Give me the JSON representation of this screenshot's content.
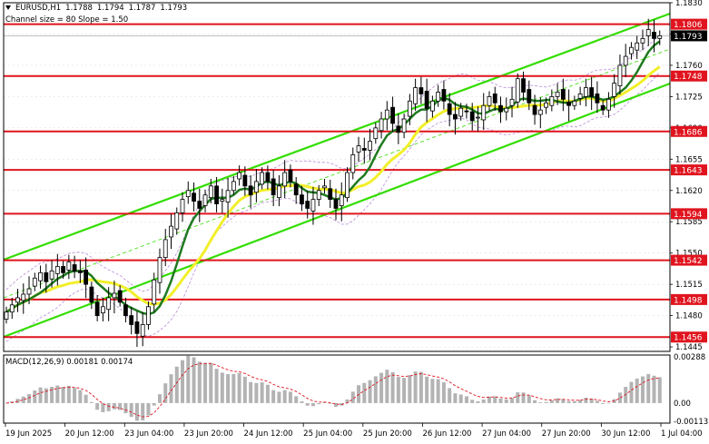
{
  "header": {
    "symbol": "EURUSD,H1",
    "ohlc": [
      "1.1788",
      "1.1794",
      "1.1787",
      "1.1793"
    ],
    "channel_label": "Channel size = 80 Slope = 1.50"
  },
  "macd_label": "MACD(12,26,9) 0.00181 0.00174",
  "colors": {
    "level_line": "#e0141e",
    "level_tag": "#e0141e",
    "channel": "#33dd00",
    "ma_fast": "#1f7a1f",
    "ma_slow": "#f2ef2a",
    "envelope": "#b88ad8",
    "candle": "#000000",
    "macd_hist": "#b3b3b3",
    "macd_signal": "#e0141e",
    "grid": "#d8d8d8"
  },
  "chart_data": {
    "type": "candlestick",
    "price_axis": {
      "min": 1.144,
      "max": 1.183,
      "ticks": [
        "1.1830",
        "1.1795",
        "1.1760",
        "1.1725",
        "1.1690",
        "1.1655",
        "1.1620",
        "1.1585",
        "1.1550",
        "1.1515",
        "1.1480",
        "1.1445"
      ]
    },
    "time_labels": [
      "19 Jun 2025",
      "20 Jun 12:00",
      "23 Jun 04:00",
      "23 Jun 20:00",
      "24 Jun 12:00",
      "25 Jun 04:00",
      "25 Jun 20:00",
      "26 Jun 12:00",
      "27 Jun 04:00",
      "27 Jun 20:00",
      "30 Jun 12:00",
      "1 Jul 04:00"
    ],
    "horizontal_levels": [
      "1.1806",
      "1.1748",
      "1.1686",
      "1.1643",
      "1.1594",
      "1.1542",
      "1.1498",
      "1.1456"
    ],
    "current_price": "1.1793",
    "close_path": [
      1.1484,
      1.1492,
      1.15,
      1.1504,
      1.151,
      1.1522,
      1.1528,
      1.1518,
      1.153,
      1.1535,
      1.1528,
      1.154,
      1.153,
      1.1528,
      1.1515,
      1.1495,
      1.148,
      1.149,
      1.15,
      1.1505,
      1.1495,
      1.148,
      1.147,
      1.146,
      1.147,
      1.149,
      1.152,
      1.1545,
      1.1565,
      1.158,
      1.1595,
      1.161,
      1.162,
      1.1608,
      1.16,
      1.1615,
      1.1625,
      1.1605,
      1.161,
      1.162,
      1.163,
      1.164,
      1.1625,
      1.1615,
      1.163,
      1.164,
      1.163,
      1.1615,
      1.1625,
      1.164,
      1.163,
      1.1615,
      1.1605,
      1.16,
      1.161,
      1.162,
      1.1625,
      1.161,
      1.16,
      1.1615,
      1.164,
      1.166,
      1.167,
      1.1665,
      1.1675,
      1.169,
      1.17,
      1.171,
      1.1695,
      1.1685,
      1.17,
      1.172,
      1.1735,
      1.1728,
      1.1712,
      1.172,
      1.173,
      1.172,
      1.1705,
      1.17,
      1.1712,
      1.1708,
      1.1698,
      1.1702,
      1.1715,
      1.1725,
      1.1718,
      1.1708,
      1.1712,
      1.1722,
      1.1745,
      1.173,
      1.1718,
      1.1705,
      1.171,
      1.1718,
      1.1725,
      1.173,
      1.1722,
      1.1715,
      1.172,
      1.1728,
      1.1735,
      1.1725,
      1.1718,
      1.171,
      1.1722,
      1.174,
      1.176,
      1.177,
      1.178,
      1.1785,
      1.179,
      1.18,
      1.179,
      1.1793
    ],
    "macd": {
      "axis_ticks": [
        "0.00288",
        "0.00",
        "-0.00113"
      ],
      "min": -0.00125,
      "max": 0.003
    }
  }
}
